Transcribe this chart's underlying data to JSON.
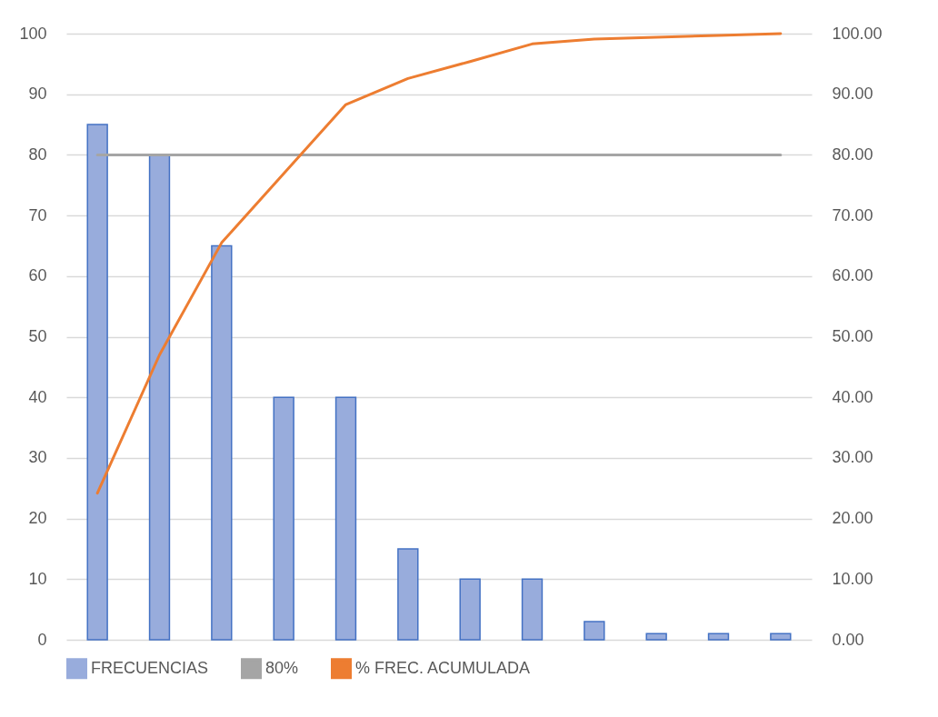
{
  "chart_data": {
    "type": "bar",
    "categories": [
      null,
      null,
      null,
      null,
      null,
      null,
      null,
      null,
      null,
      null,
      null,
      null
    ],
    "series": [
      {
        "name": "FRECUENCIAS",
        "color": "#98acdc",
        "values": [
          85,
          80,
          65,
          40,
          40,
          15,
          10,
          10,
          3,
          1,
          1,
          1
        ]
      },
      {
        "name": "80%",
        "type": "line",
        "color": "#a5a5a5",
        "values": [
          80,
          80,
          80,
          80,
          80,
          80,
          80,
          80,
          80,
          80,
          80,
          80
        ]
      },
      {
        "name": "% FREC. ACUMULADA",
        "type": "line",
        "axis": "y2",
        "color": "#ed7d31",
        "values": [
          24.2,
          47.0,
          65.5,
          76.9,
          88.3,
          92.6,
          95.4,
          98.3,
          99.1,
          99.4,
          99.7,
          100
        ]
      }
    ],
    "ylim": [
      0,
      100
    ],
    "yticks": [
      0,
      10,
      20,
      30,
      40,
      50,
      60,
      70,
      80,
      90,
      100
    ],
    "y2lim": [
      0,
      100
    ],
    "y2ticks": [
      {
        "value": 0,
        "label": "0.00"
      },
      {
        "value": 10,
        "label": "10.00"
      },
      {
        "value": 20,
        "label": "20.00"
      },
      {
        "value": 30,
        "label": "30.00"
      },
      {
        "value": 40,
        "label": "40.00"
      },
      {
        "value": 50,
        "label": "50.00"
      },
      {
        "value": 60,
        "label": "60.00"
      },
      {
        "value": 70,
        "label": "70.00"
      },
      {
        "value": 80,
        "label": "80.00"
      },
      {
        "value": 90,
        "label": "90.00"
      },
      {
        "value": 100,
        "label": "100.00"
      }
    ],
    "grid": "y",
    "legend": "bottom"
  }
}
